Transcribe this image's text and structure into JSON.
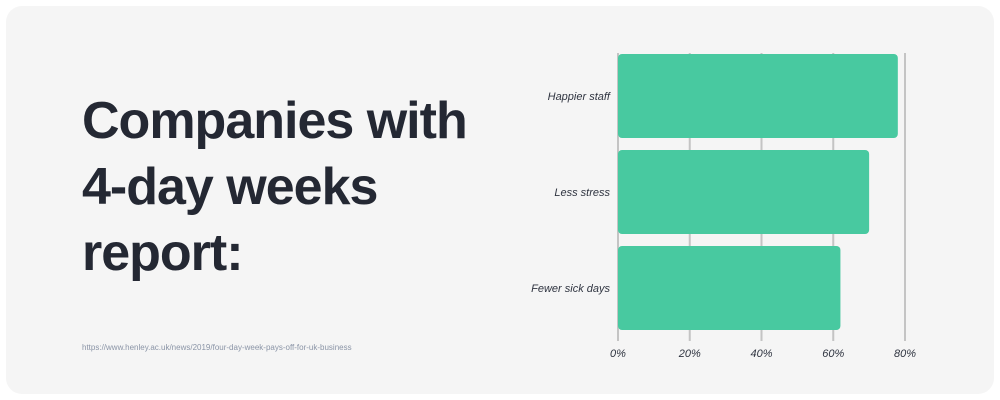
{
  "headline": {
    "lines": [
      "Companies with",
      "4-day weeks",
      "report:"
    ]
  },
  "source_url": "https://www.henley.ac.uk/news/2019/four-day-week-pays-off-for-uk-business",
  "colors": {
    "card_background": "#f5f5f5",
    "bar": "#48c9a0",
    "gridline": "#c4c4c4",
    "headline_text": "#242833"
  },
  "chart_data": {
    "type": "bar",
    "orientation": "horizontal",
    "categories": [
      "Happier staff",
      "Less stress",
      "Fewer sick days"
    ],
    "values": [
      78,
      70,
      62
    ],
    "value_unit": "%",
    "xlim": [
      0,
      80
    ],
    "xticks": [
      "0%",
      "20%",
      "40%",
      "60%",
      "80%"
    ],
    "grid": true,
    "title": "",
    "xlabel": "",
    "ylabel": ""
  }
}
